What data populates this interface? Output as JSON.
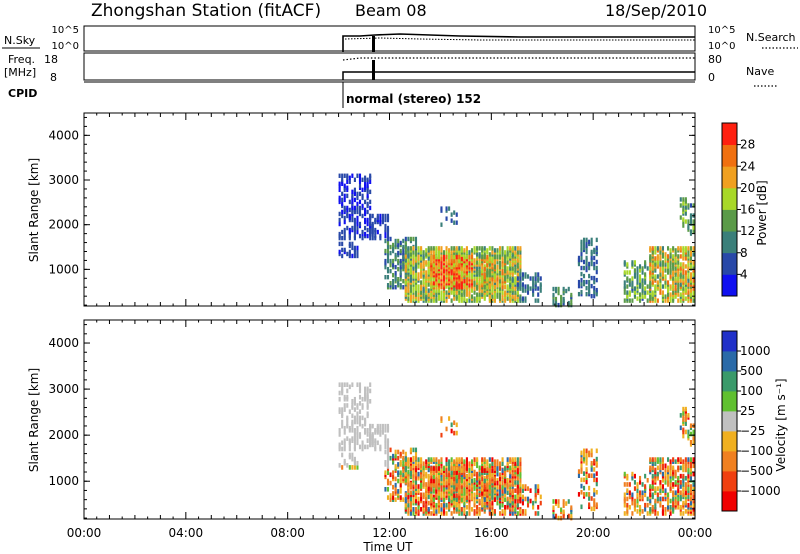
{
  "header": {
    "station": "Zhongshan Station (fitACF)",
    "beam": "Beam 08",
    "date": "18/Sep/2010"
  },
  "summary_panels": {
    "nsky": {
      "label": "N.Sky",
      "left_ticks": [
        "10^5",
        "10^0"
      ],
      "right_label": "N.Search",
      "right_ticks": [
        "10^5",
        "10^0"
      ]
    },
    "freq": {
      "label_top": "Freq.",
      "label_bottom": "[MHz]",
      "left_ticks": [
        "18",
        "8"
      ],
      "right_label": "Nave",
      "right_ticks": [
        "80",
        "0"
      ]
    },
    "cpid": {
      "label": "CPID",
      "mode_text": "normal (stereo) 152"
    }
  },
  "chart_data": [
    {
      "type": "heatmap",
      "name": "power",
      "ylabel": "Slant Range [km]",
      "ylim": [
        180,
        4500
      ],
      "yticks": [
        "1000",
        "2000",
        "3000",
        "4000"
      ],
      "xlim": [
        "00:00",
        "24:00"
      ],
      "colorbar": {
        "label": "Power [dB]",
        "ticks": [
          "4",
          "8",
          "12",
          "16",
          "20",
          "24",
          "28"
        ],
        "colors": [
          "#1010f0",
          "#2848a8",
          "#3a7f7a",
          "#5a9a48",
          "#a8d828",
          "#f0a020",
          "#f07010",
          "#ff2010"
        ]
      },
      "data_start_hour": 10.0
    },
    {
      "type": "heatmap",
      "name": "velocity",
      "ylabel": "Slant Range [km]",
      "ylim": [
        180,
        4500
      ],
      "yticks": [
        "1000",
        "2000",
        "3000",
        "4000"
      ],
      "xlim": [
        "00:00",
        "24:00"
      ],
      "colorbar": {
        "label": "Velocity [m s⁻¹]",
        "ticks": [
          "1000",
          "500",
          "100",
          "25",
          "−25",
          "−100",
          "−500",
          "−1000"
        ],
        "colors": [
          "#2030c8",
          "#2a6aa8",
          "#3a9a6a",
          "#60c030",
          "#c0c0c0",
          "#f0b020",
          "#f08020",
          "#f04010",
          "#f00000"
        ]
      },
      "data_start_hour": 10.0
    }
  ],
  "xaxis": {
    "ticks": [
      "00:00",
      "04:00",
      "08:00",
      "12:00",
      "16:00",
      "20:00",
      "00:00"
    ],
    "label": "Time UT"
  }
}
